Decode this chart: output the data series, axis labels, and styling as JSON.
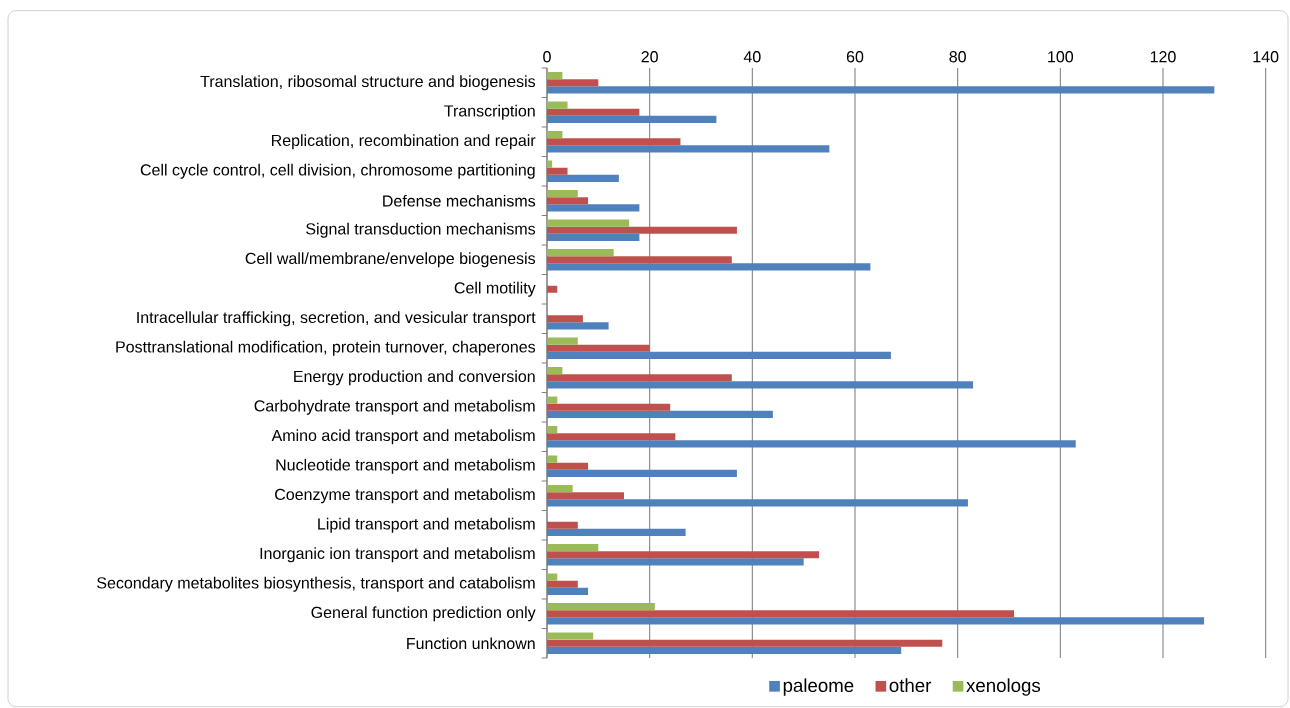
{
  "chart_data": {
    "type": "bar",
    "orientation": "horizontal",
    "categories": [
      "Translation, ribosomal structure and biogenesis",
      "Transcription",
      "Replication, recombination and repair",
      "Cell cycle control, cell division, chromosome partitioning",
      "Defense mechanisms",
      "Signal transduction mechanisms",
      "Cell wall/membrane/envelope biogenesis",
      "Cell motility",
      "Intracellular trafficking, secretion, and vesicular transport",
      "Posttranslational modification, protein turnover, chaperones",
      "Energy production and conversion",
      "Carbohydrate transport and metabolism",
      "Amino acid transport and metabolism",
      "Nucleotide transport and metabolism",
      "Coenzyme transport and metabolism",
      "Lipid transport and metabolism",
      "Inorganic ion transport and metabolism",
      "Secondary metabolites biosynthesis, transport and catabolism",
      "General function prediction only",
      "Function unknown"
    ],
    "series": [
      {
        "name": "paleome",
        "color": "#4f81bd",
        "values": [
          130,
          33,
          55,
          14,
          18,
          18,
          63,
          0,
          12,
          67,
          83,
          44,
          103,
          37,
          82,
          27,
          50,
          8,
          128,
          69
        ]
      },
      {
        "name": "other",
        "color": "#c0504d",
        "values": [
          10,
          18,
          26,
          4,
          8,
          37,
          36,
          2,
          7,
          20,
          36,
          24,
          25,
          8,
          15,
          6,
          53,
          6,
          91,
          77
        ]
      },
      {
        "name": "xenologs",
        "color": "#9bbb59",
        "values": [
          3,
          4,
          3,
          1,
          6,
          16,
          13,
          0,
          0,
          6,
          3,
          2,
          2,
          2,
          5,
          0,
          10,
          2,
          21,
          9
        ]
      }
    ],
    "xlim": [
      0,
      140
    ],
    "xticks": [
      0,
      20,
      40,
      60,
      80,
      100,
      120,
      140
    ],
    "grid": "x",
    "legend": "bottom"
  }
}
